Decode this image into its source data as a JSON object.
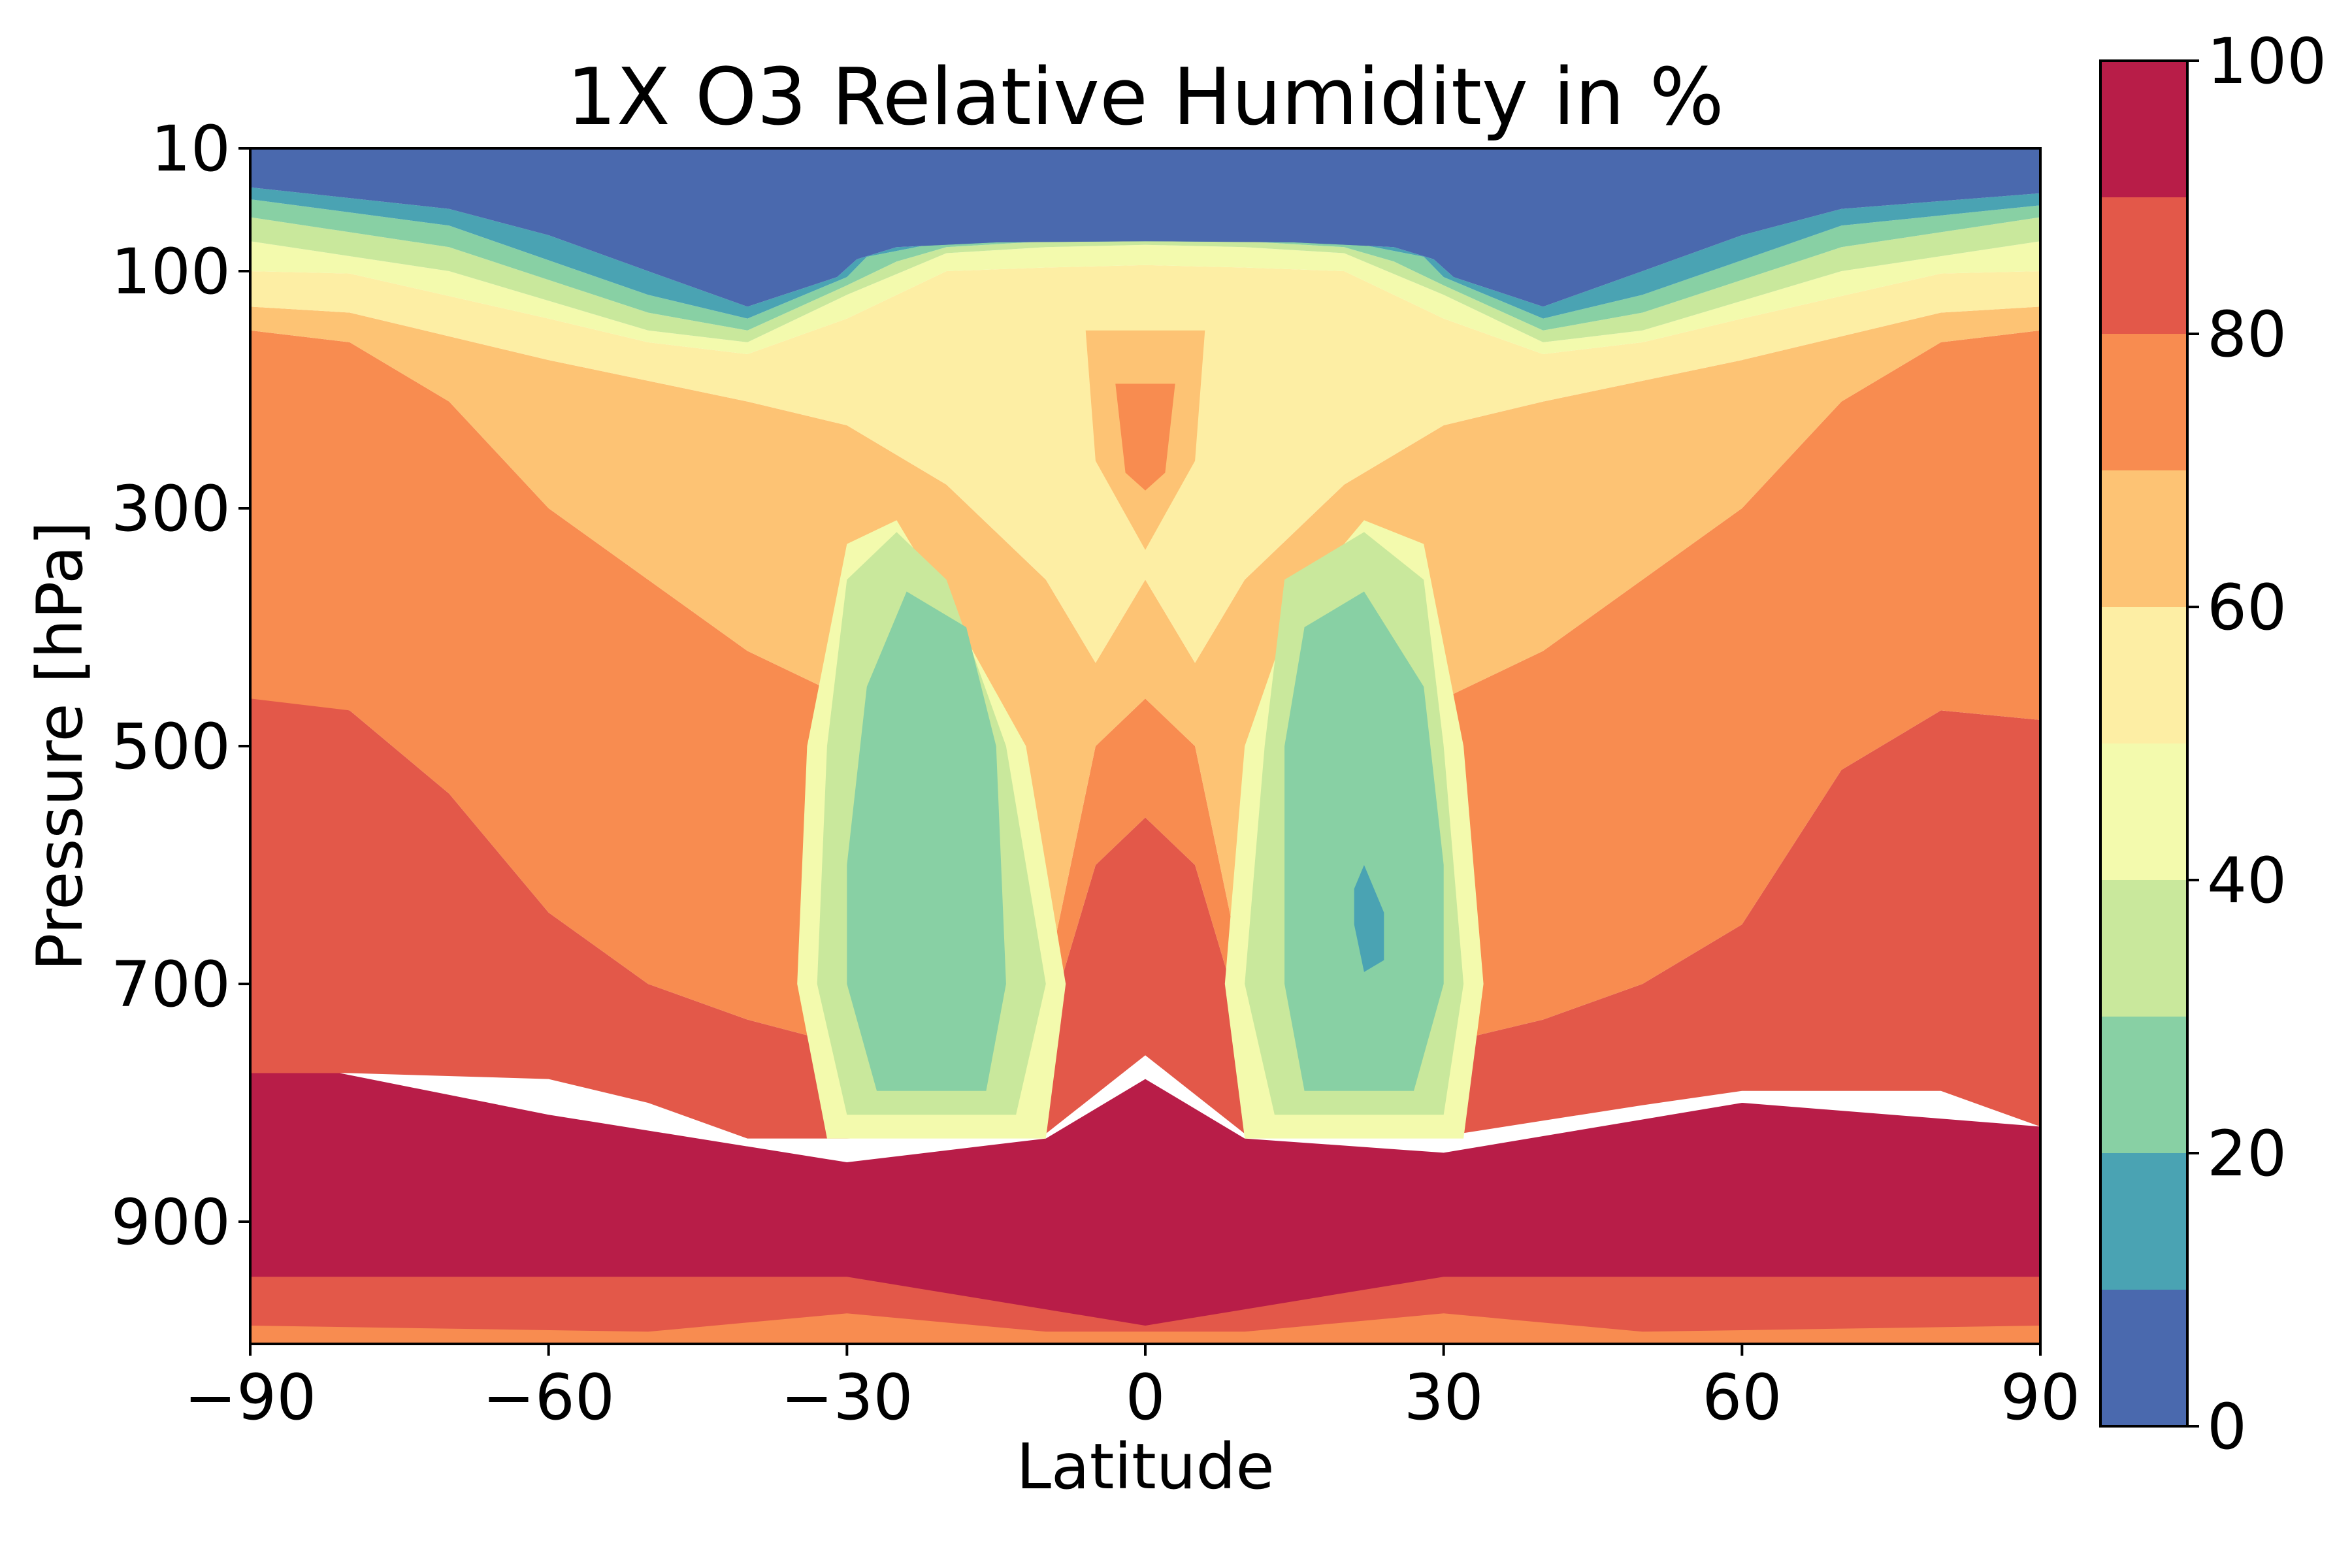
{
  "chart_data": {
    "type": "heatmap",
    "subtype": "filled-contour",
    "title": "1X O3 Relative Humidity in %",
    "xlabel": "Latitude",
    "ylabel": "Pressure [hPa]",
    "xlim": [
      -90,
      90
    ],
    "ylim": [
      1000,
      10
    ],
    "y_scale": "log-pressure",
    "x_ticks": [
      -90,
      -60,
      -30,
      0,
      30,
      60,
      90
    ],
    "x_tick_labels": [
      "−90",
      "−60",
      "−30",
      "0",
      "30",
      "60",
      "90"
    ],
    "y_ticks": [
      10,
      100,
      300,
      500,
      700,
      900
    ],
    "y_tick_labels": [
      "10",
      "100",
      "300",
      "500",
      "700",
      "900"
    ],
    "grid": false,
    "colorbar": {
      "location": "right",
      "range": [
        0,
        100
      ],
      "ticks": [
        0,
        20,
        40,
        60,
        80,
        100
      ],
      "tick_labels": [
        "0",
        "20",
        "40",
        "60",
        "80",
        "100"
      ],
      "levels": [
        0,
        10,
        20,
        30,
        40,
        50,
        60,
        70,
        80,
        90,
        100
      ],
      "colors": [
        "#4a69ae",
        "#4aa3b3",
        "#88d0a4",
        "#c9e89c",
        "#f3faad",
        "#fdeea4",
        "#fdc374",
        "#f88c50",
        "#e35849",
        "#b81d48"
      ]
    },
    "contour_bands": [
      {
        "band": "0-10",
        "lat": [
          -90,
          -80,
          -70,
          -60,
          -50,
          -45,
          -40,
          -33,
          -31,
          -29,
          -20,
          -10,
          0,
          10,
          20,
          29,
          31,
          33,
          40,
          45,
          50,
          60,
          70,
          80,
          90
        ],
        "p": [
          10,
          10,
          10,
          10,
          10,
          10,
          10,
          10,
          10,
          10,
          10,
          10,
          10,
          10,
          10,
          10,
          10,
          10,
          10,
          10,
          10,
          10,
          10,
          10,
          10
        ],
        "p_low": [
          30,
          42,
          62,
          92,
          125,
          140,
          140,
          132,
          112,
          96,
          90,
          89,
          88,
          89,
          90,
          96,
          112,
          132,
          140,
          140,
          125,
          92,
          62,
          42,
          35
        ]
      },
      {
        "band": "cloud-max",
        "lat": [
          -90,
          -60,
          -30,
          0,
          30,
          60,
          90
        ],
        "value_range": [
          90,
          100
        ],
        "p_top": [
          780,
          805,
          850,
          822,
          850,
          815,
          825
        ],
        "p_bot": [
          940,
          940,
          938,
          950,
          940,
          942,
          940
        ]
      }
    ]
  }
}
